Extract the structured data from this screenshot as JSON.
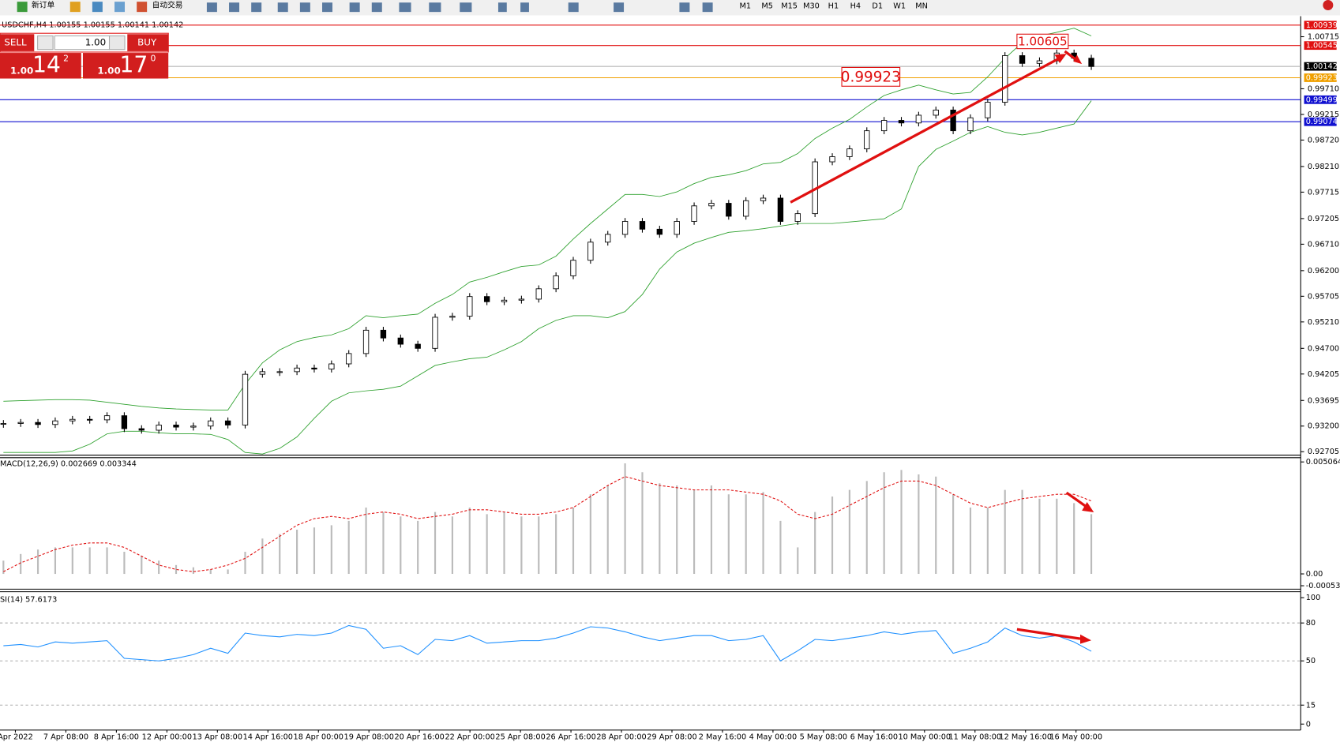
{
  "toolbar": {
    "new_order": "新订单",
    "auto_trading": "自动交易",
    "timeframes": [
      "M1",
      "M5",
      "M15",
      "M30",
      "H1",
      "H4",
      "D1",
      "W1",
      "MN"
    ]
  },
  "symbol_info": "USDCHF,H4  1.00155 1.00155 1.00141 1.00142",
  "trade_panel": {
    "sell": "SELL",
    "buy": "BUY",
    "lot": "1.00",
    "sell_price": {
      "prefix": "1.00",
      "big": "14",
      "small": "2"
    },
    "buy_price": {
      "prefix": "1.00",
      "big": "17",
      "small": "0"
    }
  },
  "price_chart": {
    "ylim": [
      0.92656,
      1.01094
    ],
    "yticks": [
      {
        "value": 1.00715,
        "label": "1.00715"
      },
      {
        "value": 0.9971,
        "label": "0.99710"
      },
      {
        "value": 0.99215,
        "label": "0.99215"
      },
      {
        "value": 0.9872,
        "label": "0.98720"
      },
      {
        "value": 0.9821,
        "label": "0.98210"
      },
      {
        "value": 0.97715,
        "label": "0.97715"
      },
      {
        "value": 0.97205,
        "label": "0.97205"
      },
      {
        "value": 0.9671,
        "label": "0.96710"
      },
      {
        "value": 0.962,
        "label": "0.96200"
      },
      {
        "value": 0.95705,
        "label": "0.95705"
      },
      {
        "value": 0.9521,
        "label": "0.95210"
      },
      {
        "value": 0.947,
        "label": "0.94700"
      },
      {
        "value": 0.94205,
        "label": "0.94205"
      },
      {
        "value": 0.93695,
        "label": "0.93695"
      },
      {
        "value": 0.932,
        "label": "0.93200"
      },
      {
        "value": 0.92705,
        "label": "0.92705"
      }
    ],
    "levels": [
      {
        "value": 1.00939,
        "label": "1.00939",
        "color": "#e01010"
      },
      {
        "value": 1.00545,
        "label": "1.00545",
        "color": "#e01010"
      },
      {
        "value": 1.00142,
        "label": "1.00142",
        "color": "#000000"
      },
      {
        "value": 0.99923,
        "label": "0.99923",
        "color": "#f0a000"
      },
      {
        "value": 0.99499,
        "label": "0.99499",
        "color": "#1010d0"
      },
      {
        "value": 0.99074,
        "label": "0.99074",
        "color": "#1010d0"
      }
    ],
    "annotations": [
      "1.00605",
      "0.99923"
    ],
    "closes": [
      0.9325,
      0.9327,
      0.9323,
      0.933,
      0.9333,
      0.9332,
      0.934,
      0.9315,
      0.9312,
      0.9322,
      0.9318,
      0.932,
      0.933,
      0.9322,
      0.942,
      0.9425,
      0.9425,
      0.9432,
      0.943,
      0.944,
      0.946,
      0.9505,
      0.949,
      0.9478,
      0.947,
      0.953,
      0.9532,
      0.957,
      0.956,
      0.9563,
      0.9565,
      0.9585,
      0.961,
      0.964,
      0.9675,
      0.969,
      0.9715,
      0.97,
      0.969,
      0.9715,
      0.9745,
      0.975,
      0.9725,
      0.9755,
      0.976,
      0.9715,
      0.973,
      0.983,
      0.984,
      0.9855,
      0.989,
      0.991,
      0.9905,
      0.992,
      0.993,
      0.989,
      0.9915,
      0.9945,
      1.0035,
      1.002,
      1.0025,
      1.004,
      1.003,
      1.0014
    ],
    "upper_band": [
      0.9368,
      0.9369,
      0.937,
      0.9371,
      0.9371,
      0.937,
      0.9366,
      0.9362,
      0.9358,
      0.9355,
      0.9353,
      0.9352,
      0.9351,
      0.9351,
      0.9401,
      0.9442,
      0.9467,
      0.9483,
      0.9491,
      0.9496,
      0.9508,
      0.9533,
      0.9529,
      0.9533,
      0.9536,
      0.9557,
      0.9574,
      0.9598,
      0.9607,
      0.9618,
      0.9628,
      0.9631,
      0.9648,
      0.9681,
      0.9711,
      0.9739,
      0.9767,
      0.9767,
      0.9763,
      0.9772,
      0.9788,
      0.98,
      0.9805,
      0.9813,
      0.9826,
      0.9829,
      0.9846,
      0.9875,
      0.9895,
      0.9912,
      0.9936,
      0.9958,
      0.9969,
      0.9978,
      0.9969,
      0.9961,
      0.9964,
      0.9994,
      1.003,
      1.006,
      1.0073,
      1.008,
      1.0088,
      1.0073
    ],
    "lower_band": [
      0.9269,
      0.9269,
      0.9269,
      0.9269,
      0.9272,
      0.9285,
      0.9305,
      0.931,
      0.931,
      0.9307,
      0.9305,
      0.9305,
      0.9304,
      0.9294,
      0.9269,
      0.9266,
      0.9277,
      0.9299,
      0.9335,
      0.9368,
      0.9384,
      0.9388,
      0.9391,
      0.9397,
      0.9417,
      0.9437,
      0.9444,
      0.945,
      0.9453,
      0.9467,
      0.9483,
      0.9508,
      0.9524,
      0.9533,
      0.9533,
      0.9529,
      0.9541,
      0.9574,
      0.9623,
      0.9656,
      0.9673,
      0.9684,
      0.9694,
      0.9697,
      0.9701,
      0.9706,
      0.9711,
      0.9711,
      0.9711,
      0.9714,
      0.9717,
      0.972,
      0.9739,
      0.9821,
      0.9854,
      0.987,
      0.9887,
      0.9898,
      0.9887,
      0.9882,
      0.9887,
      0.9895,
      0.9903,
      0.9948
    ]
  },
  "macd": {
    "label": "MACD(12,26,9) 0.002669 0.003344",
    "ylim": [
      -0.000536,
      0.005064
    ],
    "yticks": [
      {
        "value": 0.005064,
        "label": "0.005064"
      },
      {
        "value": 0,
        "label": "0.00"
      },
      {
        "value": -0.000536,
        "label": "-0.000536"
      }
    ],
    "histogram": [
      0.0006,
      0.0009,
      0.0011,
      0.0012,
      0.0012,
      0.0012,
      0.0012,
      0.001,
      0.0008,
      0.0006,
      0.0004,
      0.0003,
      0.0002,
      0.0002,
      0.001,
      0.0016,
      0.0018,
      0.002,
      0.0021,
      0.0022,
      0.0024,
      0.003,
      0.0028,
      0.0026,
      0.0024,
      0.0028,
      0.0026,
      0.003,
      0.0027,
      0.0028,
      0.0026,
      0.0026,
      0.0027,
      0.003,
      0.0036,
      0.004,
      0.005,
      0.0046,
      0.0041,
      0.004,
      0.0038,
      0.004,
      0.0036,
      0.0036,
      0.0037,
      0.0024,
      0.0012,
      0.0028,
      0.0035,
      0.0038,
      0.0042,
      0.0046,
      0.0047,
      0.0045,
      0.0044,
      0.0036,
      0.003,
      0.003,
      0.0038,
      0.0038,
      0.0034,
      0.0034,
      0.0032,
      0.0027
    ],
    "signal": [
      0.0001,
      0.0005,
      0.0008,
      0.0011,
      0.0013,
      0.0014,
      0.0014,
      0.0012,
      0.0008,
      0.0004,
      0.0002,
      0.0001,
      0.0002,
      0.0004,
      0.0007,
      0.0012,
      0.0017,
      0.0022,
      0.0025,
      0.0026,
      0.0025,
      0.0027,
      0.0028,
      0.0027,
      0.0025,
      0.0026,
      0.0027,
      0.0029,
      0.0029,
      0.0028,
      0.0027,
      0.0027,
      0.0028,
      0.003,
      0.0035,
      0.004,
      0.0044,
      0.0042,
      0.004,
      0.0039,
      0.0038,
      0.0038,
      0.0038,
      0.0037,
      0.0036,
      0.0033,
      0.0027,
      0.0025,
      0.0027,
      0.0031,
      0.0035,
      0.0039,
      0.0042,
      0.0042,
      0.004,
      0.0036,
      0.0032,
      0.003,
      0.0032,
      0.0034,
      0.0035,
      0.0036,
      0.0036,
      0.0033
    ]
  },
  "rsi": {
    "label": "SI(14) 57.6173",
    "ylim": [
      0,
      100
    ],
    "yticks": [
      100,
      80,
      50,
      15,
      0
    ],
    "levels": [
      80,
      50,
      15
    ],
    "values": [
      62,
      63,
      61,
      65,
      64,
      65,
      66,
      52,
      51,
      50,
      52,
      55,
      60,
      56,
      72,
      70,
      69,
      71,
      70,
      72,
      78,
      75,
      60,
      62,
      55,
      67,
      66,
      70,
      64,
      65,
      66,
      66,
      68,
      72,
      77,
      76,
      73,
      69,
      66,
      68,
      70,
      70,
      66,
      67,
      70,
      50,
      58,
      67,
      66,
      68,
      70,
      73,
      71,
      73,
      74,
      56,
      60,
      65,
      76,
      70,
      68,
      70,
      65,
      57.6
    ]
  },
  "dates": [
    "Apr 2022",
    "7 Apr 08:00",
    "8 Apr 16:00",
    "12 Apr 00:00",
    "13 Apr 08:00",
    "14 Apr 16:00",
    "18 Apr 00:00",
    "19 Apr 08:00",
    "20 Apr 16:00",
    "22 Apr 00:00",
    "25 Apr 08:00",
    "26 Apr 16:00",
    "28 Apr 00:00",
    "29 Apr 08:00",
    "2 May 16:00",
    "4 May 00:00",
    "5 May 08:00",
    "6 May 16:00",
    "10 May 00:00",
    "11 May 08:00",
    "12 May 16:00",
    "16 May 00:00"
  ]
}
